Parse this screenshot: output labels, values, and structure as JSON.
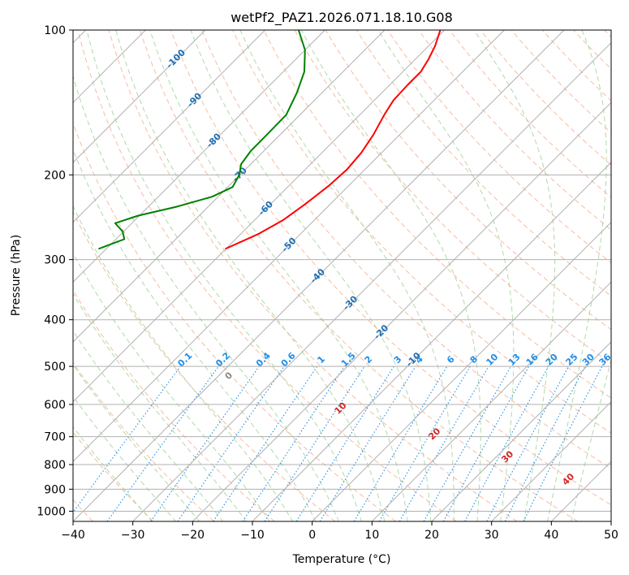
{
  "chart_data": {
    "type": "line",
    "chart_kind": "skew-t log-p",
    "title": "wetPf2_PAZ1.2026.071.18.10.G08",
    "xlabel": "Temperature (°C)",
    "ylabel": "Pressure (hPa)",
    "xlim": [
      -40,
      50
    ],
    "ylim": [
      1050,
      100
    ],
    "y_scale": "log",
    "grid": true,
    "x_ticks": [
      -40,
      -30,
      -20,
      -10,
      0,
      10,
      20,
      30,
      40,
      50
    ],
    "x_tick_labels": [
      "−40",
      "−30",
      "−20",
      "−10",
      "0",
      "10",
      "20",
      "30",
      "40",
      "50"
    ],
    "y_ticks": [
      100,
      200,
      300,
      400,
      500,
      600,
      700,
      800,
      900,
      1000
    ],
    "y_tick_labels": [
      "100",
      "200",
      "300",
      "400",
      "500",
      "600",
      "700",
      "800",
      "900",
      "1000"
    ],
    "series": [
      {
        "role": "temperature",
        "color": "#ff0000",
        "points": [
          {
            "p": 285,
            "t": -60.1
          },
          {
            "p": 265,
            "t": -57.0
          },
          {
            "p": 248,
            "t": -55.2
          },
          {
            "p": 230,
            "t": -54.2
          },
          {
            "p": 210,
            "t": -53.3
          },
          {
            "p": 195,
            "t": -53.0
          },
          {
            "p": 180,
            "t": -53.4
          },
          {
            "p": 165,
            "t": -54.4
          },
          {
            "p": 150,
            "t": -55.9
          },
          {
            "p": 140,
            "t": -56.8
          },
          {
            "p": 130,
            "t": -57.0
          },
          {
            "p": 122,
            "t": -57.0
          },
          {
            "p": 115,
            "t": -57.8
          },
          {
            "p": 108,
            "t": -58.9
          },
          {
            "p": 100,
            "t": -60.7
          }
        ]
      },
      {
        "role": "dewpoint",
        "color": "#008000",
        "points": [
          {
            "p": 285,
            "t": -81.3
          },
          {
            "p": 272,
            "t": -78.6
          },
          {
            "p": 262,
            "t": -80.2
          },
          {
            "p": 252,
            "t": -82.8
          },
          {
            "p": 243,
            "t": -80.2
          },
          {
            "p": 233,
            "t": -75.3
          },
          {
            "p": 222,
            "t": -71.0
          },
          {
            "p": 212,
            "t": -69.2
          },
          {
            "p": 200,
            "t": -70.1
          },
          {
            "p": 190,
            "t": -71.6
          },
          {
            "p": 178,
            "t": -72.2
          },
          {
            "p": 165,
            "t": -72.2
          },
          {
            "p": 150,
            "t": -72.3
          },
          {
            "p": 135,
            "t": -74.2
          },
          {
            "p": 122,
            "t": -76.5
          },
          {
            "p": 110,
            "t": -80.0
          },
          {
            "p": 100,
            "t": -84.4
          }
        ]
      }
    ],
    "isotherm_spacing": 10,
    "dry_adiabat_labels": [
      {
        "text": "-100",
        "t": -100,
        "p": 115
      },
      {
        "text": "-90",
        "t": -90,
        "p": 140
      },
      {
        "text": "-80",
        "t": -80,
        "p": 170
      },
      {
        "text": "-70",
        "t": -70,
        "p": 200
      },
      {
        "text": "-60",
        "t": -60,
        "p": 235
      },
      {
        "text": "-50",
        "t": -50,
        "p": 280
      },
      {
        "text": "-40",
        "t": -40,
        "p": 325
      },
      {
        "text": "-30",
        "t": -30,
        "p": 370
      },
      {
        "text": "-20",
        "t": -20,
        "p": 425
      },
      {
        "text": "-10",
        "t": -10,
        "p": 485
      }
    ],
    "mixing_ratio_labels": [
      "0.1",
      "0.2",
      "0.4",
      "0.6",
      "1",
      "1.5",
      "2",
      "3",
      "4",
      "6",
      "8",
      "10",
      "13",
      "16",
      "20",
      "25",
      "30",
      "36"
    ],
    "mixing_ratio_values": [
      0.1,
      0.2,
      0.4,
      0.6,
      1,
      1.5,
      2,
      3,
      4,
      6,
      8,
      10,
      13,
      16,
      20,
      25,
      30,
      36
    ],
    "moist_adiabat_labels": [
      "0",
      "10",
      "20",
      "30",
      "40"
    ],
    "moist_adiabat_values": [
      0,
      10,
      20,
      30,
      40
    ],
    "moist_adiabat_label_pressures": [
      525,
      610,
      690,
      770,
      860
    ],
    "colors": {
      "isotherm": "#b0b0b0",
      "isobar": "#b0b0b0",
      "dry_adiabat": "#f4a582",
      "moist_adiabat": "#a6d5a0",
      "mixing_ratio": "#1f8ee8",
      "dry_label": "#1f6fb4",
      "moist_label_zero": "#888888",
      "moist_label": "#d62728",
      "mixing_label": "#1f8ee8"
    }
  }
}
